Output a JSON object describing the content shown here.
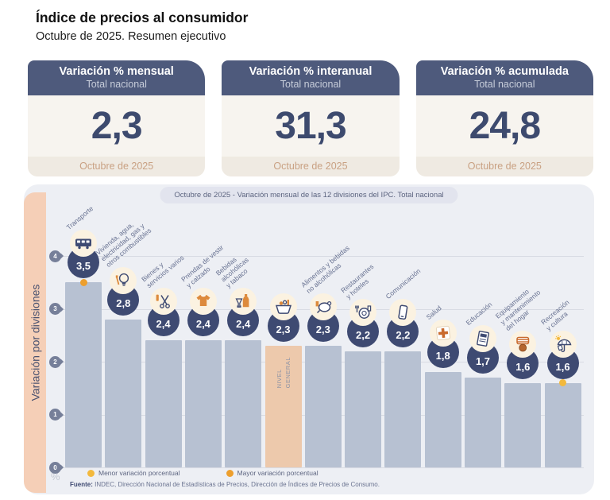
{
  "page": {
    "title": "Índice de precios al consumidor",
    "subtitle": "Octubre de 2025. Resumen ejecutivo"
  },
  "cards": [
    {
      "title": "Variación % mensual",
      "subtitle": "Total nacional",
      "value": "2,3",
      "period": "Octubre de 2025"
    },
    {
      "title": "Variación % interanual",
      "subtitle": "Total nacional",
      "value": "31,3",
      "period": "Octubre de 2025"
    },
    {
      "title": "Variación % acumulada",
      "subtitle": "Total nacional",
      "value": "24,8",
      "period": "Octubre de 2025"
    }
  ],
  "chart": {
    "header": "Octubre de 2025 - Variación mensual de las 12 divisiones del IPC. Total nacional",
    "side_label": "Variación por divisiones",
    "unit_label": "%",
    "source_label": "Fuente:",
    "source_text": " INDEC, Dirección Nacional de Estadísticas de Precios, Dirección de Índices de Precios de Consumo."
  },
  "colors": {
    "navy": "#3e4a72",
    "slate_header": "#4e5a7c",
    "bar": "#b7c1d2",
    "bar_general": "#edc9ac",
    "strip": "#f5cfb7",
    "panel": "#edeff4",
    "menor": "#f3b93d",
    "mayor": "#ed9f2e",
    "icon_orange": "#dd8a3c"
  },
  "chart_data": {
    "type": "bar",
    "title": "Octubre de 2025 - Variación mensual de las 12 divisiones del IPC. Total nacional",
    "ylabel": "Variación por divisiones",
    "unit": "%",
    "ylim": [
      0,
      4
    ],
    "yticks": [
      4,
      3,
      2,
      1,
      0
    ],
    "grid": true,
    "legend": [
      {
        "id": "menor",
        "label": "Menor variación porcentual"
      },
      {
        "id": "mayor",
        "label": "Mayor variación porcentual"
      }
    ],
    "categories": [
      "Transporte",
      "Vivienda, agua, electricidad, gas y otros combustibles",
      "Bienes y servicios varios",
      "Prendas de vestir y calzado",
      "Bebidas alcohólicas y tabaco",
      "Nivel general",
      "Alimentos y bebidas no alcohólicas",
      "Restaurantes y hoteles",
      "Comunicación",
      "Salud",
      "Educación",
      "Equipamiento y mantenimiento del hogar",
      "Recreación y cultura"
    ],
    "values": [
      3.5,
      2.8,
      2.4,
      2.4,
      2.4,
      2.3,
      2.3,
      2.2,
      2.2,
      1.8,
      1.7,
      1.6,
      1.6
    ],
    "bars": [
      {
        "label": "Transporte",
        "display_label": "Transporte",
        "value": 3.5,
        "value_label": "3,5",
        "icon": "bus-icon",
        "marker": "mayor"
      },
      {
        "label": "Vivienda, agua, electricidad, gas y otros combustibles",
        "display_label": "Vivienda, agua,\nelectricidad, gas y\notros combustibles",
        "value": 2.8,
        "value_label": "2,8",
        "icon": "lightbulb-icon"
      },
      {
        "label": "Bienes y servicios varios",
        "display_label": "Bienes y\nservicios varios",
        "value": 2.4,
        "value_label": "2,4",
        "icon": "scissors-icon"
      },
      {
        "label": "Prendas de vestir y calzado",
        "display_label": "Prendas de vestir\ny calzado",
        "value": 2.4,
        "value_label": "2,4",
        "icon": "tshirt-icon"
      },
      {
        "label": "Bebidas alcohólicas y tabaco",
        "display_label": "Bebidas\nalcohólicas\ny tabaco",
        "value": 2.4,
        "value_label": "2,4",
        "icon": "bottle-icon"
      },
      {
        "label": "Nivel general",
        "display_label": "",
        "inner_label": "NIVEL\nGENERAL",
        "general": true,
        "value": 2.3,
        "value_label": "2,3",
        "icon": "basket-icon"
      },
      {
        "label": "Alimentos y bebidas no alcohólicas",
        "display_label": "Alimentos y bebidas\nno alcohólicas",
        "value": 2.3,
        "value_label": "2,3",
        "icon": "poultry-icon"
      },
      {
        "label": "Restaurantes y hoteles",
        "display_label": "Restaurantes\ny hoteles",
        "value": 2.2,
        "value_label": "2,2",
        "icon": "restaurant-icon"
      },
      {
        "label": "Comunicación",
        "display_label": "Comunicación",
        "value": 2.2,
        "value_label": "2,2",
        "icon": "phone-icon"
      },
      {
        "label": "Salud",
        "display_label": "Salud",
        "value": 1.8,
        "value_label": "1,8",
        "icon": "medical-cross-icon"
      },
      {
        "label": "Educación",
        "display_label": "Educación",
        "value": 1.7,
        "value_label": "1,7",
        "icon": "book-icon"
      },
      {
        "label": "Equipamiento y mantenimiento del hogar",
        "display_label": "Equipamiento\ny mantenimiento\ndel hogar",
        "value": 1.6,
        "value_label": "1,6",
        "icon": "washer-icon"
      },
      {
        "label": "Recreación y cultura",
        "display_label": "Recreación\ny cultura",
        "value": 1.6,
        "value_label": "1,6",
        "icon": "umbrella-icon",
        "marker": "menor"
      }
    ]
  }
}
